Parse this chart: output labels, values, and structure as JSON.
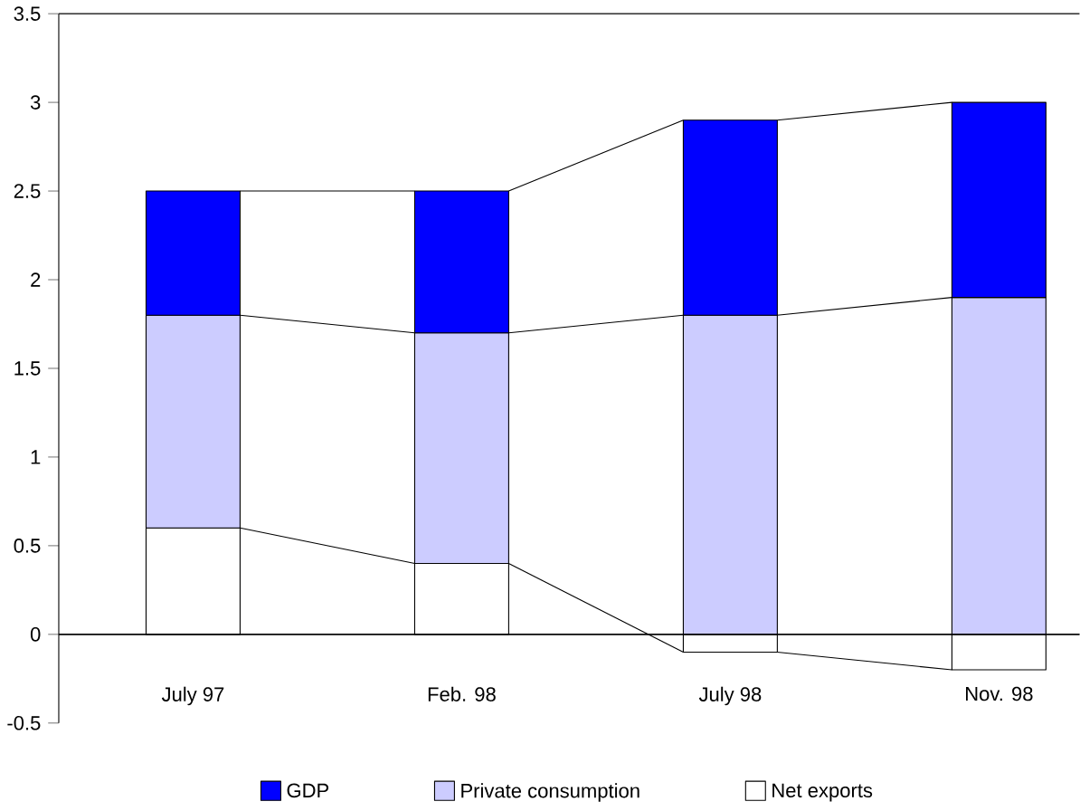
{
  "chart_data": {
    "type": "bar",
    "stacked": true,
    "categories": [
      "July 97",
      "Feb. 98",
      "July 98",
      "Nov. 98"
    ],
    "series": [
      {
        "name": "Net exports",
        "color": "#ffffff",
        "values": [
          0.6,
          0.4,
          -0.1,
          -0.2
        ]
      },
      {
        "name": "Private consumption",
        "color": "#ccccff",
        "values": [
          1.2,
          1.3,
          1.8,
          1.9
        ]
      },
      {
        "name": "GDP",
        "color": "#0000ff",
        "values": [
          0.7,
          0.8,
          1.1,
          1.1
        ]
      }
    ],
    "ylim": [
      -0.5,
      3.5
    ],
    "yticks": [
      -0.5,
      0,
      0.5,
      1,
      1.5,
      2,
      2.5,
      3,
      3.5
    ],
    "legend": "bottom"
  }
}
